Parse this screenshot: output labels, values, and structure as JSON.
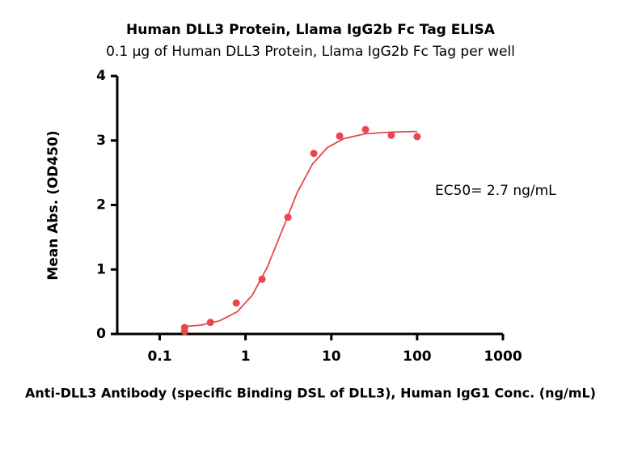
{
  "chart_data": {
    "type": "scatter",
    "title": "Human DLL3 Protein, Llama IgG2b Fc Tag ELISA",
    "subtitle": "0.1 μg of Human DLL3 Protein, Llama IgG2b Fc Tag per well",
    "x_label": "Anti-DLL3 Antibody (specific Binding DSL of DLL3), Human IgG1 Conc. (ng/mL)",
    "y_label": "Mean Abs. (OD450)",
    "annotation": "EC50= 2.7 ng/mL",
    "color": "#e8474c",
    "x": [
      0.195,
      0.195,
      0.39,
      0.78,
      1.56,
      3.125,
      6.25,
      12.5,
      25,
      50,
      100
    ],
    "values": [
      0.1,
      0.04,
      0.18,
      0.48,
      0.85,
      1.81,
      2.8,
      3.07,
      3.17,
      3.08,
      3.06
    ],
    "curve": {
      "x": [
        0.195,
        0.3,
        0.5,
        0.8,
        1.2,
        1.8,
        2.7,
        4,
        6,
        9,
        14,
        25,
        50,
        100
      ],
      "values": [
        0.116,
        0.137,
        0.204,
        0.345,
        0.6,
        1.04,
        1.62,
        2.19,
        2.63,
        2.89,
        3.03,
        3.105,
        3.13,
        3.14
      ]
    },
    "x_log": true,
    "xlim": [
      0.032,
      1000
    ],
    "xticks": [
      0.1,
      1,
      10,
      100,
      1000
    ],
    "ylim": [
      0,
      4
    ],
    "yticks": [
      0,
      1,
      2,
      3,
      4
    ]
  }
}
